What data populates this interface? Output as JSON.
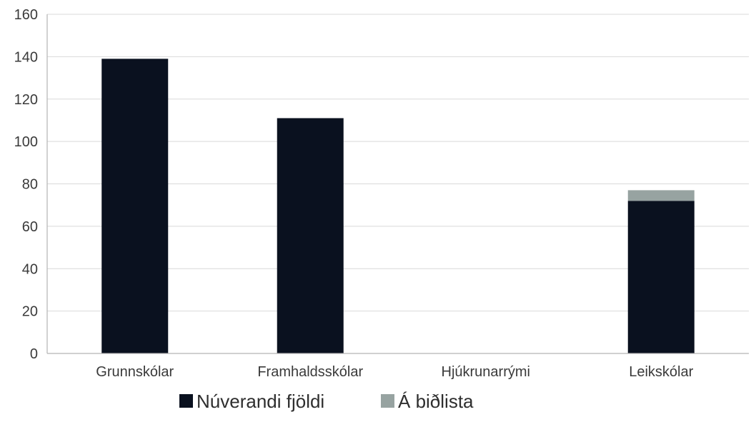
{
  "chart_data": {
    "type": "bar",
    "stacked": true,
    "categories": [
      "Grunnskólar",
      "Framhaldsskólar",
      "Hjúkrunarrými",
      "Leikskólar"
    ],
    "series": [
      {
        "name": "Núverandi fjöldi",
        "color": "#0a111f",
        "values": [
          139,
          111,
          0,
          72
        ]
      },
      {
        "name": "Á biðlista",
        "color": "#97a3a1",
        "values": [
          0,
          0,
          0,
          5
        ]
      }
    ],
    "yticks": [
      "0",
      "20",
      "40",
      "60",
      "80",
      "100",
      "120",
      "140",
      "160"
    ],
    "ylim": [
      0,
      160
    ],
    "grid": true,
    "legend_position": "bottom"
  }
}
